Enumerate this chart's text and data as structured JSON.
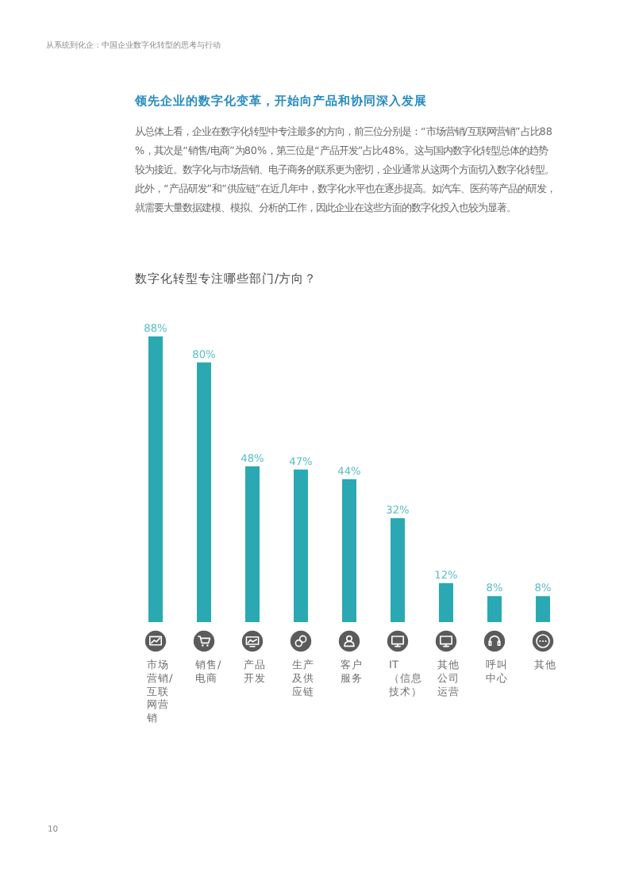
{
  "chart_data": {
    "type": "bar",
    "title": "数字化转型专注哪些部门/方向？",
    "annotations": [
      "从系统到化企：中国企业数字化转型的思考与行动",
      "领先企业的数字化变革，开始向产品和协同深入发展",
      "从总体上看，企业在数字化转型中专注最多的方向，前三位分别是：“市场营销/互联网营销”占比88%，其次是“销售/电商”为80%，第三位是“产品开发”占比48%。这与国内数字化转型总体的趋势较为接近。数字化与市场营销、电子商务的联系更为密切，企业通常从这两个方面切入数字化转型。此外，“产品研发”和“供应链”在近几年中，数字化水平也在逐步提高。如汽车、医药等产品的研发，就需要大量数据建模、模拟、分析的工作，因此企业在这些方面的数字化投入也较为显著。",
      "10"
    ],
    "categories": [
      "市场营销/互联网营销",
      "销售/电商",
      "产品开发",
      "生产及供应链",
      "客户服务",
      "IT（信息技术）",
      "其他公司运营",
      "呼叫中心",
      "其他"
    ],
    "values": [
      88,
      80,
      48,
      47,
      44,
      32,
      12,
      8,
      8
    ],
    "value_labels": [
      "88%",
      "80%",
      "48%",
      "47%",
      "44%",
      "32%",
      "12%",
      "8%",
      "8%"
    ],
    "color": "#2aa9b2"
  }
}
